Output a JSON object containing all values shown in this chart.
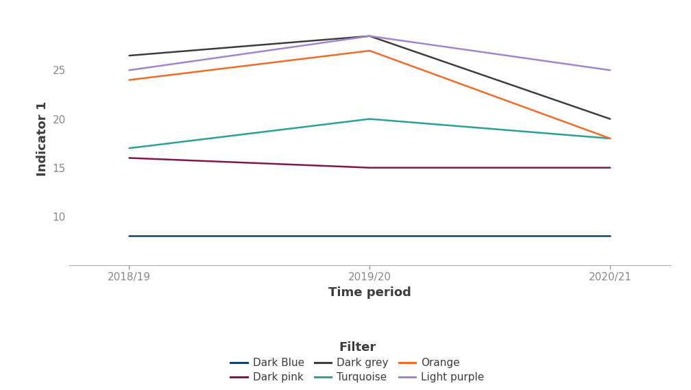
{
  "title": "",
  "xlabel": "Time period",
  "ylabel": "Indicator 1",
  "x_labels": [
    "2018/19",
    "2019/20",
    "2020/21"
  ],
  "x_values": [
    0,
    1,
    2
  ],
  "ylim": [
    5,
    31
  ],
  "yticks": [
    10,
    15,
    20,
    25
  ],
  "series": [
    {
      "name": "Dark Blue",
      "color": "#12436D",
      "values": [
        8,
        8,
        8
      ]
    },
    {
      "name": "Dark pink",
      "color": "#801650",
      "values": [
        16,
        15,
        15
      ]
    },
    {
      "name": "Dark grey",
      "color": "#3D3D3D",
      "values": [
        26.5,
        28.5,
        20
      ]
    },
    {
      "name": "Turquoise",
      "color": "#28A197",
      "values": [
        17,
        20,
        18
      ]
    },
    {
      "name": "Orange",
      "color": "#F46A25",
      "values": [
        24,
        27,
        18
      ]
    },
    {
      "name": "Light purple",
      "color": "#A285D1",
      "values": [
        25,
        28.5,
        25
      ]
    }
  ],
  "background_color": "#ffffff",
  "legend_title": "Filter",
  "spine_color": "#aaaaaa",
  "label_color": "#3D3D3D",
  "tick_color": "#888888",
  "line_width": 1.8
}
